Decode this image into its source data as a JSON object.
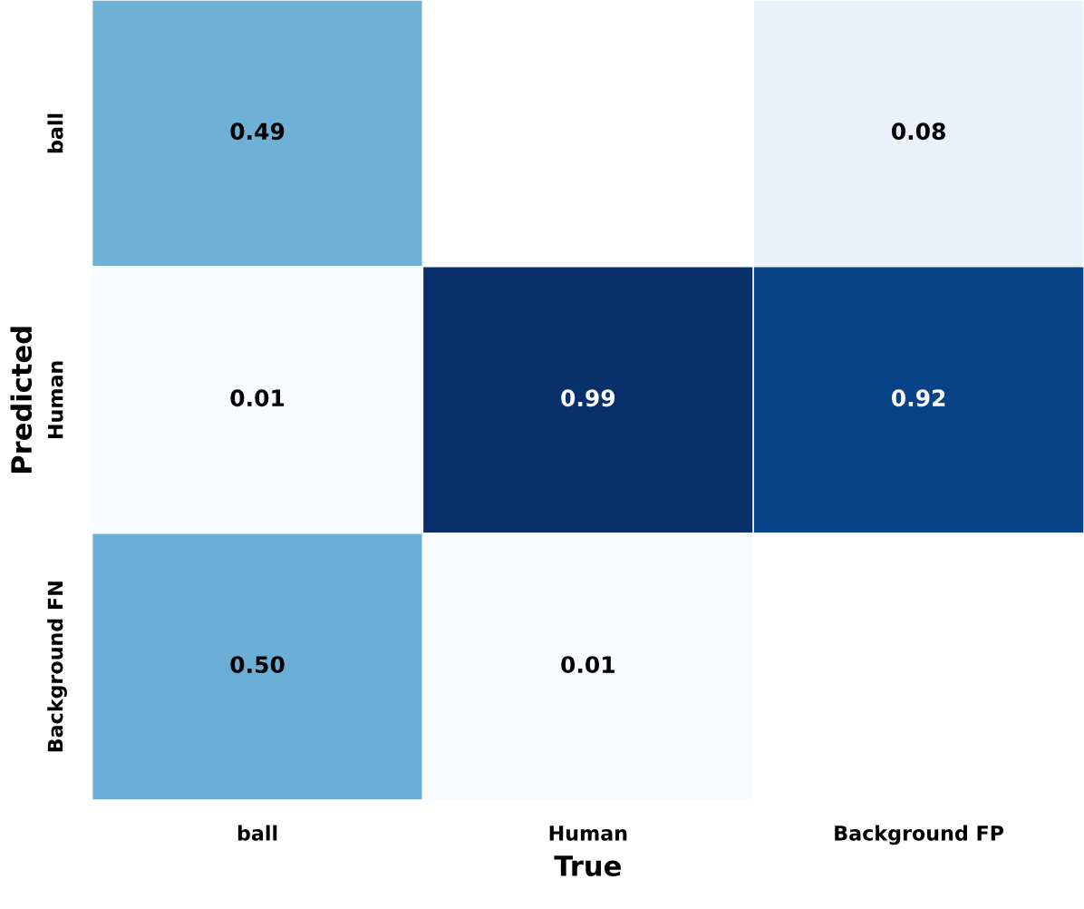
{
  "chart_data": {
    "type": "heatmap",
    "xlabel": "True",
    "ylabel": "Predicted",
    "categories": [
      "ball",
      "Human",
      "Background FP"
    ],
    "y_categories": [
      "ball",
      "Human",
      "Background FN"
    ],
    "cells": [
      [
        0.49,
        null,
        0.08
      ],
      [
        0.01,
        0.99,
        0.92
      ],
      [
        0.5,
        0.01,
        null
      ]
    ],
    "cell_labels": [
      [
        "0.49",
        null,
        "0.08"
      ],
      [
        "0.01",
        "0.99",
        "0.92"
      ],
      [
        "0.50",
        "0.01",
        null
      ]
    ]
  }
}
